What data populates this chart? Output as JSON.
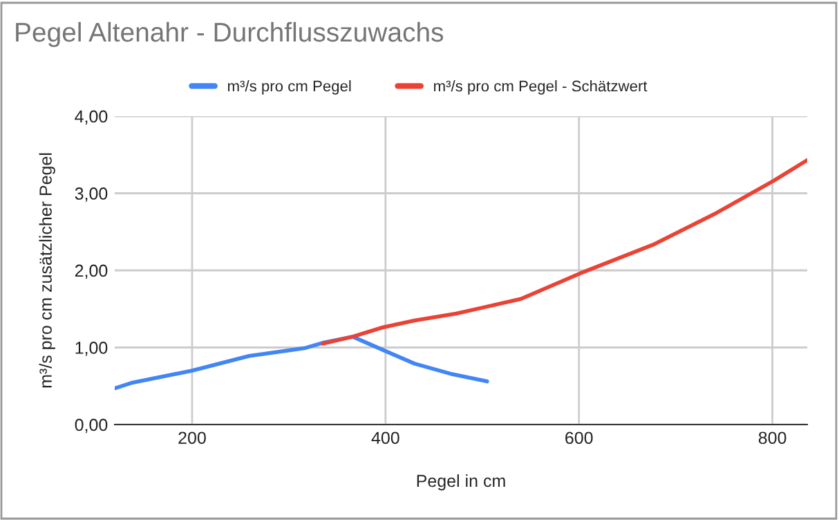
{
  "chart_data": {
    "type": "line",
    "title": "Pegel Altenahr - Durchflusszuwachs",
    "xlabel": "Pegel in cm",
    "ylabel": "m³/s pro cm zusätzlicher Pegel",
    "series": [
      {
        "name": "m³/s pro cm Pegel",
        "color": "#4285f4",
        "x": [
          120,
          137,
          200,
          259,
          316,
          335,
          366,
          397,
          430,
          467,
          505
        ],
        "values": [
          0.47,
          0.54,
          0.7,
          0.89,
          0.99,
          1.06,
          1.14,
          0.97,
          0.79,
          0.66,
          0.56
        ]
      },
      {
        "name": "m³/s pro cm Pegel - Schätzwert",
        "color": "#ea4335",
        "x": [
          335,
          366,
          397,
          430,
          473,
          505,
          540,
          601,
          678,
          740,
          801,
          836
        ],
        "values": [
          1.05,
          1.14,
          1.26,
          1.35,
          1.44,
          1.53,
          1.63,
          1.96,
          2.34,
          2.73,
          3.16,
          3.43
        ]
      }
    ],
    "xlim": [
      120,
      836
    ],
    "xticks": [
      200,
      400,
      600,
      800
    ],
    "ylim": [
      0,
      4
    ],
    "yticks": [
      {
        "value": 0,
        "label": "0,00"
      },
      {
        "value": 1,
        "label": "1,00"
      },
      {
        "value": 2,
        "label": "2,00"
      },
      {
        "value": 3,
        "label": "3,00"
      },
      {
        "value": 4,
        "label": "4,00"
      }
    ],
    "grid": true,
    "legend": "top",
    "marker": "none",
    "line_style": "solid"
  }
}
